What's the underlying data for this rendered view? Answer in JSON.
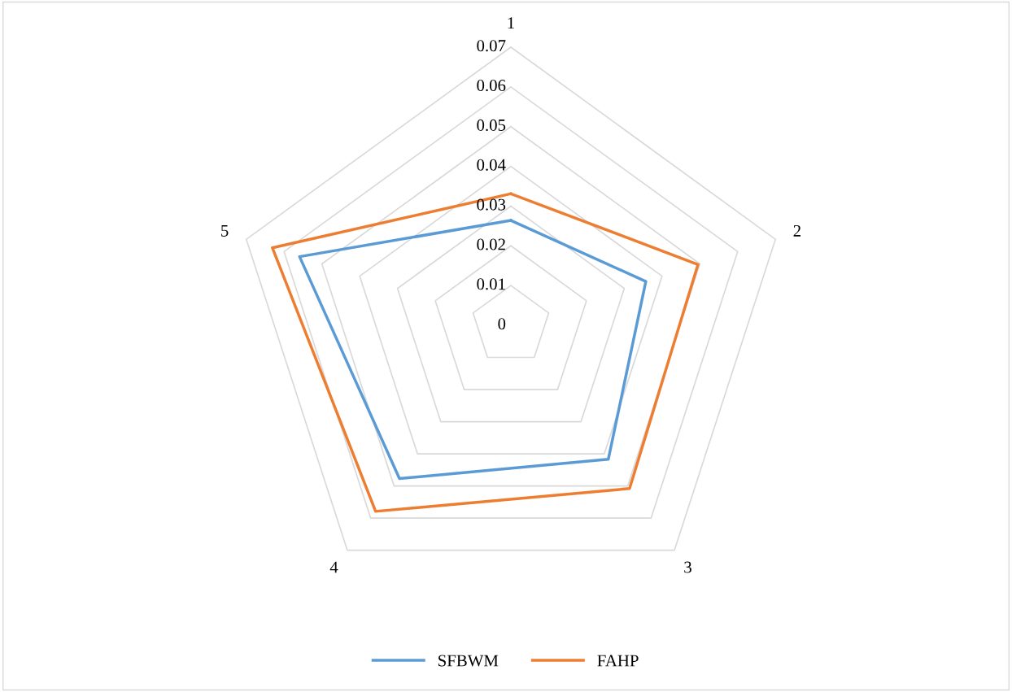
{
  "chart_data": {
    "type": "radar",
    "categories": [
      "1",
      "2",
      "3",
      "4",
      "5"
    ],
    "series": [
      {
        "name": "SFBWM",
        "color": "#5b9bd5",
        "values": [
          0.0264,
          0.0357,
          0.0417,
          0.0477,
          0.0559
        ]
      },
      {
        "name": "FAHP",
        "color": "#ed7d31",
        "values": [
          0.0331,
          0.0495,
          0.0508,
          0.0579,
          0.0631
        ]
      }
    ],
    "ylim": [
      0,
      0.07
    ],
    "yticks": [
      0,
      0.01,
      0.02,
      0.03,
      0.04,
      0.05,
      0.06,
      0.07
    ],
    "grid": true,
    "legend": "bottom"
  }
}
